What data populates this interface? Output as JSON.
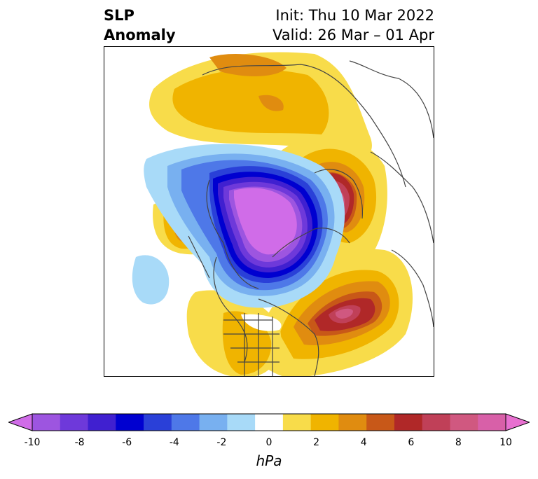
{
  "title": {
    "left_line1": "SLP",
    "left_line2": "Anomaly",
    "right_line1": "Init: Thu 10 Mar 2022",
    "right_line2": "Valid: 26 Mar – 01 Apr"
  },
  "colorbar": {
    "units": "hPa",
    "ticks": [
      "-10",
      "-8",
      "-6",
      "-4",
      "-2",
      "0",
      "2",
      "4",
      "6",
      "8",
      "10"
    ],
    "levels": [
      -10,
      -9,
      -8,
      -7,
      -6,
      -5,
      -4,
      -3,
      -2,
      -1,
      1,
      2,
      3,
      4,
      5,
      6,
      7,
      8,
      9,
      10
    ],
    "colors": [
      "#d06ce8",
      "#9d55e0",
      "#6e39da",
      "#4020d0",
      "#0000d0",
      "#2a40d8",
      "#4e78e8",
      "#78b0f0",
      "#a8daf8",
      "#ffffff",
      "#f8dc4a",
      "#f0b400",
      "#e08c10",
      "#c85818",
      "#b02828",
      "#c04058",
      "#d05880",
      "#d860a8",
      "#e870d0"
    ],
    "extend": "both"
  },
  "map": {
    "projection": "north-polar-stereographic",
    "variable": "sea-level-pressure-anomaly",
    "features": [
      {
        "name": "arctic-low",
        "sign": "negative",
        "peak": -10
      },
      {
        "name": "northeast-pacific-low",
        "sign": "negative",
        "peak": -3
      },
      {
        "name": "eastern-pacific-low",
        "sign": "negative",
        "peak": -2
      },
      {
        "name": "north-atlantic-high",
        "sign": "positive",
        "peak": 8
      },
      {
        "name": "scandinavia-high",
        "sign": "positive",
        "peak": 8
      },
      {
        "name": "siberia-high",
        "sign": "positive",
        "peak": 4
      },
      {
        "name": "bering-high",
        "sign": "positive",
        "peak": 5
      },
      {
        "name": "eastern-north-america-high",
        "sign": "positive",
        "peak": 3
      }
    ]
  }
}
